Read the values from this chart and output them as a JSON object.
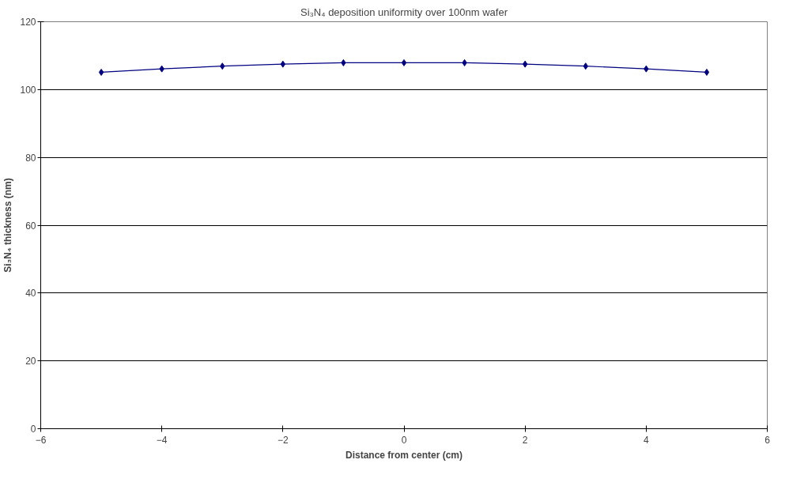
{
  "chart_data": {
    "type": "line",
    "title": "Si₃N₄ deposition uniformity over 100nm wafer",
    "xlabel": "Distance from center (cm)",
    "ylabel": "Si₃N₄ thickness (nm)",
    "x": [
      -5,
      -4,
      -3,
      -2,
      -1,
      0,
      1,
      2,
      3,
      4,
      5
    ],
    "series": [
      {
        "color": "#000080",
        "values": [
          105.1,
          106.1,
          106.9,
          107.5,
          107.9,
          107.9,
          107.9,
          107.5,
          106.9,
          106.1,
          105.1
        ]
      }
    ],
    "xlim": [
      -6,
      6
    ],
    "ylim": [
      0,
      120
    ],
    "xticks": [
      -6,
      -4,
      -2,
      0,
      2,
      4,
      6
    ],
    "yticks": [
      0,
      20,
      40,
      60,
      80,
      100,
      120
    ],
    "grid": "y",
    "marker": "diamond",
    "line_style": "solid"
  }
}
